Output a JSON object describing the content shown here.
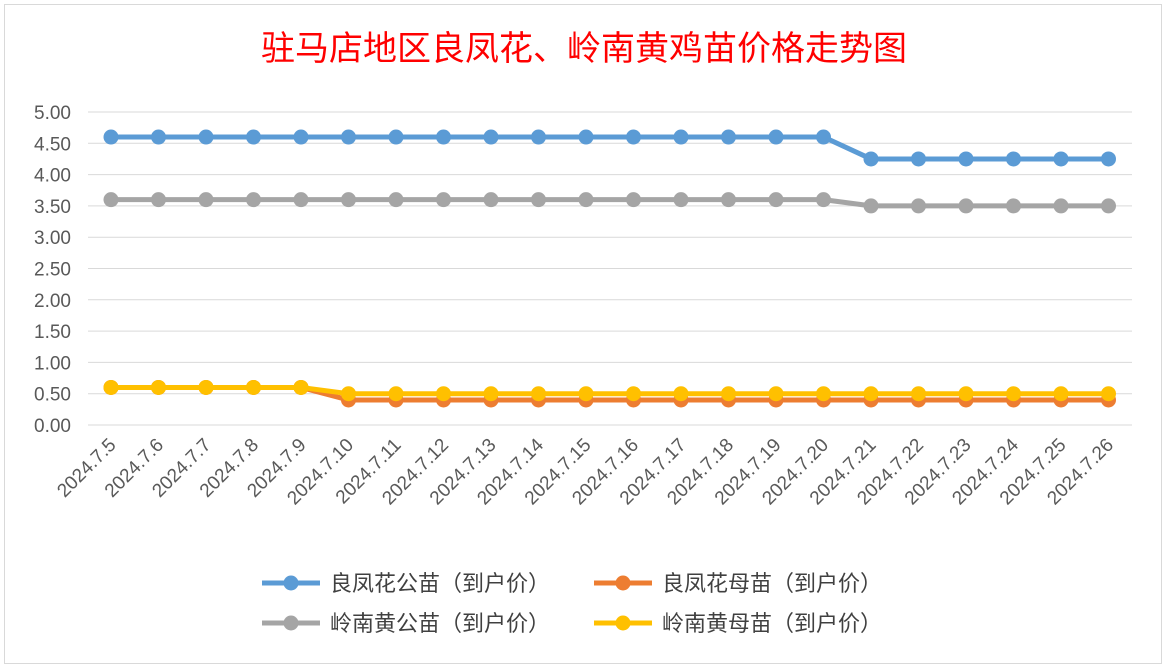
{
  "chart_data": {
    "type": "line",
    "title": "驻马店地区良凤花、岭南黄鸡苗价格走势图",
    "title_color": "#ff0000",
    "xlabel": "",
    "ylabel": "",
    "ylim": [
      0,
      5
    ],
    "y_ticks": [
      "0.00",
      "0.50",
      "1.00",
      "1.50",
      "2.00",
      "2.50",
      "3.00",
      "3.50",
      "4.00",
      "4.50",
      "5.00"
    ],
    "grid": true,
    "legend_position": "bottom",
    "categories": [
      "2024.7.5",
      "2024.7.6",
      "2024.7.7",
      "2024.7.8",
      "2024.7.9",
      "2024.7.10",
      "2024.7.11",
      "2024.7.12",
      "2024.7.13",
      "2024.7.14",
      "2024.7.15",
      "2024.7.16",
      "2024.7.17",
      "2024.7.18",
      "2024.7.19",
      "2024.7.20",
      "2024.7.21",
      "2024.7.22",
      "2024.7.23",
      "2024.7.24",
      "2024.7.25",
      "2024.7.26"
    ],
    "series": [
      {
        "name": "良凤花公苗（到户价）",
        "color": "#5b9bd5",
        "values": [
          4.6,
          4.6,
          4.6,
          4.6,
          4.6,
          4.6,
          4.6,
          4.6,
          4.6,
          4.6,
          4.6,
          4.6,
          4.6,
          4.6,
          4.6,
          4.6,
          4.25,
          4.25,
          4.25,
          4.25,
          4.25,
          4.25
        ]
      },
      {
        "name": "良凤花母苗（到户价）",
        "color": "#ed7d31",
        "values": [
          0.6,
          0.6,
          0.6,
          0.6,
          0.6,
          0.4,
          0.4,
          0.4,
          0.4,
          0.4,
          0.4,
          0.4,
          0.4,
          0.4,
          0.4,
          0.4,
          0.4,
          0.4,
          0.4,
          0.4,
          0.4,
          0.4
        ]
      },
      {
        "name": "岭南黄公苗（到户价）",
        "color": "#a5a5a5",
        "values": [
          3.6,
          3.6,
          3.6,
          3.6,
          3.6,
          3.6,
          3.6,
          3.6,
          3.6,
          3.6,
          3.6,
          3.6,
          3.6,
          3.6,
          3.6,
          3.6,
          3.5,
          3.5,
          3.5,
          3.5,
          3.5,
          3.5
        ]
      },
      {
        "name": "岭南黄母苗（到户价）",
        "color": "#ffc000",
        "values": [
          0.6,
          0.6,
          0.6,
          0.6,
          0.6,
          0.5,
          0.5,
          0.5,
          0.5,
          0.5,
          0.5,
          0.5,
          0.5,
          0.5,
          0.5,
          0.5,
          0.5,
          0.5,
          0.5,
          0.5,
          0.5,
          0.5
        ]
      }
    ],
    "draw_order": [
      0,
      2,
      1,
      3
    ],
    "legend_order": [
      0,
      1,
      2,
      3
    ]
  }
}
